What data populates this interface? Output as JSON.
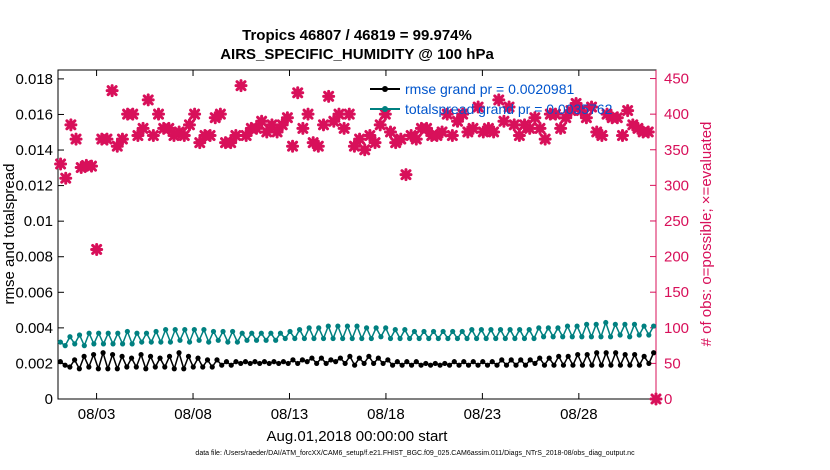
{
  "title_line1": "Tropics 46807 / 46819 = 99.974%",
  "title_line2": "AIRS_SPECIFIC_HUMIDITY @ 100 hPa",
  "footer": "data file: /Users/raeder/DAI/ATM_forcXX/CAM6_setup/f.e21.FHIST_BGC.f09_025.CAM6assim.011/Diags_NTrS_2018-08/obs_diag_output.nc",
  "colors": {
    "rmse": "#000000",
    "totalspread": "#008080",
    "obs": "#d8105a",
    "legend_text": "#0055cc"
  },
  "chart_data": {
    "type": "line",
    "xlabel": "Aug.01,2018 00:00:00 start",
    "ylabel": "rmse and totalspread",
    "y2label": "# of obs: o=possible; ×=evaluated",
    "x_ticks": [
      "08/03",
      "08/08",
      "08/13",
      "08/18",
      "08/23",
      "08/28"
    ],
    "x_range_days": [
      1.0,
      32.0
    ],
    "x_tick_days": [
      3,
      8,
      13,
      18,
      23,
      28
    ],
    "y_ticks": [
      "0",
      "0.002",
      "0.004",
      "0.006",
      "0.008",
      "0.01",
      "0.012",
      "0.014",
      "0.016",
      "0.018"
    ],
    "ylim": [
      0,
      0.0185
    ],
    "y2_ticks": [
      "0",
      "50",
      "100",
      "150",
      "200",
      "250",
      "300",
      "350",
      "400",
      "450"
    ],
    "y2lim": [
      0,
      462
    ],
    "legend": [
      {
        "label": "rmse grand pr = 0.0020981"
      },
      {
        "label": "totalspread grand pr = 0.0035762"
      }
    ],
    "series": [
      {
        "name": "rmse",
        "values": [
          0.0021,
          0.0019,
          0.0018,
          0.0022,
          0.0017,
          0.0024,
          0.0018,
          0.0025,
          0.0017,
          0.0026,
          0.0017,
          0.0025,
          0.0017,
          0.0024,
          0.0018,
          0.0023,
          0.0018,
          0.0025,
          0.0017,
          0.0024,
          0.0018,
          0.0023,
          0.0018,
          0.0024,
          0.0017,
          0.0026,
          0.0017,
          0.0024,
          0.0018,
          0.0023,
          0.0018,
          0.0022,
          0.0018,
          0.0022,
          0.0019,
          0.0021,
          0.0019,
          0.0021,
          0.002,
          0.0021,
          0.002,
          0.0021,
          0.002,
          0.0021,
          0.002,
          0.0021,
          0.002,
          0.0021,
          0.002,
          0.0022,
          0.002,
          0.0022,
          0.0021,
          0.0023,
          0.002,
          0.0023,
          0.002,
          0.0022,
          0.0021,
          0.0023,
          0.002,
          0.0024,
          0.0019,
          0.0023,
          0.002,
          0.0024,
          0.002,
          0.0023,
          0.002,
          0.0022,
          0.0019,
          0.0021,
          0.0019,
          0.0021,
          0.0019,
          0.0021,
          0.0019,
          0.002,
          0.0019,
          0.002,
          0.0019,
          0.002,
          0.0019,
          0.0021,
          0.0019,
          0.0021,
          0.0019,
          0.0021,
          0.0019,
          0.0021,
          0.0019,
          0.0021,
          0.0019,
          0.0022,
          0.0019,
          0.0022,
          0.0019,
          0.0022,
          0.0019,
          0.0022,
          0.002,
          0.0023,
          0.0019,
          0.0023,
          0.0019,
          0.0024,
          0.0019,
          0.0024,
          0.0019,
          0.0025,
          0.0019,
          0.0025,
          0.0019,
          0.0026,
          0.0019,
          0.0026,
          0.0019,
          0.0026,
          0.0019,
          0.0025,
          0.0019,
          0.0025,
          0.0019,
          0.0024,
          0.002,
          0.0026
        ]
      },
      {
        "name": "totalspread",
        "values": [
          0.0032,
          0.003,
          0.0035,
          0.0031,
          0.0036,
          0.003,
          0.0037,
          0.0031,
          0.0037,
          0.0031,
          0.0037,
          0.0031,
          0.0037,
          0.0031,
          0.0038,
          0.0031,
          0.0037,
          0.0032,
          0.0037,
          0.0032,
          0.0038,
          0.0032,
          0.0039,
          0.0032,
          0.0039,
          0.0033,
          0.0039,
          0.0032,
          0.0039,
          0.0033,
          0.0039,
          0.0032,
          0.0038,
          0.0033,
          0.0038,
          0.0032,
          0.0038,
          0.0032,
          0.0037,
          0.0033,
          0.0037,
          0.0033,
          0.0037,
          0.0033,
          0.0037,
          0.0033,
          0.0037,
          0.0034,
          0.0038,
          0.0034,
          0.0039,
          0.0034,
          0.004,
          0.0034,
          0.004,
          0.0034,
          0.0041,
          0.0034,
          0.0041,
          0.0034,
          0.0041,
          0.0034,
          0.0041,
          0.0034,
          0.004,
          0.0034,
          0.004,
          0.0035,
          0.004,
          0.0034,
          0.0039,
          0.0034,
          0.0039,
          0.0034,
          0.0038,
          0.0034,
          0.0038,
          0.0034,
          0.0038,
          0.0034,
          0.0038,
          0.0034,
          0.0038,
          0.0034,
          0.0038,
          0.0034,
          0.0039,
          0.0034,
          0.0039,
          0.0034,
          0.0039,
          0.0034,
          0.0039,
          0.0034,
          0.0039,
          0.0034,
          0.0039,
          0.0034,
          0.0039,
          0.0034,
          0.004,
          0.0035,
          0.004,
          0.0035,
          0.004,
          0.0035,
          0.0041,
          0.0035,
          0.0041,
          0.0035,
          0.0042,
          0.0035,
          0.0042,
          0.0035,
          0.0043,
          0.0035,
          0.0042,
          0.0036,
          0.0042,
          0.0035,
          0.0042,
          0.0036,
          0.0041,
          0.0036,
          0.0041
        ]
      },
      {
        "name": "obs evaluated",
        "axis": "right",
        "values": [
          330,
          310,
          385,
          365,
          325,
          328,
          327,
          210,
          365,
          365,
          433,
          355,
          365,
          400,
          400,
          370,
          380,
          420,
          370,
          400,
          380,
          380,
          370,
          375,
          370,
          385,
          400,
          360,
          370,
          370,
          395,
          400,
          360,
          360,
          370,
          440,
          370,
          380,
          380,
          390,
          375,
          385,
          375,
          385,
          395,
          355,
          430,
          380,
          400,
          360,
          355,
          385,
          425,
          390,
          400,
          380,
          400,
          355,
          365,
          350,
          370,
          360,
          385,
          400,
          375,
          360,
          365,
          315,
          370,
          365,
          380,
          380,
          370,
          370,
          375,
          400,
          370,
          390,
          400,
          375,
          380,
          410,
          375,
          380,
          375,
          420,
          390,
          410,
          385,
          370,
          385,
          380,
          395,
          380,
          365,
          400,
          400,
          380,
          395,
          405,
          415,
          405,
          395,
          410,
          375,
          370,
          400,
          395,
          395,
          370,
          405,
          385,
          380,
          375,
          375,
          0
        ]
      }
    ]
  }
}
